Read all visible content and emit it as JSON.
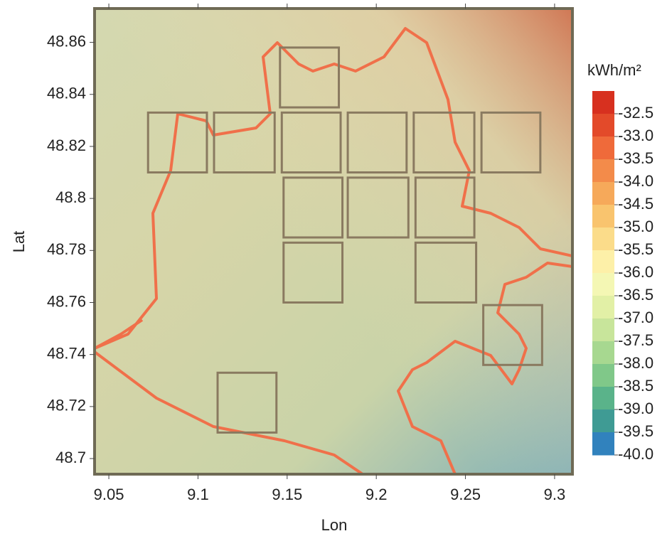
{
  "chart_data": {
    "type": "map",
    "xlabel": "Lon",
    "ylabel": "Lat",
    "xlim": [
      9.042,
      9.31
    ],
    "ylim": [
      48.694,
      48.873
    ],
    "xticks": [
      9.05,
      9.1,
      9.15,
      9.2,
      9.25,
      9.3
    ],
    "yticks": [
      48.7,
      48.72,
      48.74,
      48.76,
      48.78,
      48.8,
      48.82,
      48.84,
      48.86
    ],
    "box_color": "#8a7a60",
    "boundary_color": "#f0704a",
    "boxes": [
      {
        "lon": [
          9.146,
          9.179
        ],
        "lat": [
          48.835,
          48.858
        ]
      },
      {
        "lon": [
          9.072,
          9.105
        ],
        "lat": [
          48.81,
          48.833
        ]
      },
      {
        "lon": [
          9.109,
          9.143
        ],
        "lat": [
          48.81,
          48.833
        ]
      },
      {
        "lon": [
          9.147,
          9.18
        ],
        "lat": [
          48.81,
          48.833
        ]
      },
      {
        "lon": [
          9.184,
          9.217
        ],
        "lat": [
          48.81,
          48.833
        ]
      },
      {
        "lon": [
          9.221,
          9.255
        ],
        "lat": [
          48.81,
          48.833
        ]
      },
      {
        "lon": [
          9.259,
          9.292
        ],
        "lat": [
          48.81,
          48.833
        ]
      },
      {
        "lon": [
          9.148,
          9.181
        ],
        "lat": [
          48.785,
          48.808
        ]
      },
      {
        "lon": [
          9.184,
          9.218
        ],
        "lat": [
          48.785,
          48.808
        ]
      },
      {
        "lon": [
          9.222,
          9.255
        ],
        "lat": [
          48.785,
          48.808
        ]
      },
      {
        "lon": [
          9.148,
          9.181
        ],
        "lat": [
          48.76,
          48.783
        ]
      },
      {
        "lon": [
          9.222,
          9.256
        ],
        "lat": [
          48.76,
          48.783
        ]
      },
      {
        "lon": [
          9.26,
          9.293
        ],
        "lat": [
          48.736,
          48.759
        ]
      },
      {
        "lon": [
          9.111,
          9.144
        ],
        "lat": [
          48.71,
          48.733
        ]
      }
    ],
    "colorbar": {
      "title": "kWh/m²",
      "clim": [
        -40,
        -32
      ],
      "ticks": [
        -32.5,
        {
          "value": -33,
          "label": "-33.0"
        },
        -33.5,
        {
          "value": -34,
          "label": "-34.0"
        },
        -34.5,
        {
          "value": -35,
          "label": "-35.0"
        },
        -35.5,
        {
          "value": -36,
          "label": "-36.0"
        },
        -36.5,
        {
          "value": -37,
          "label": "-37.0"
        },
        -37.5,
        {
          "value": -38,
          "label": "-38.0"
        },
        -38.5,
        {
          "value": -39,
          "label": "-39.0"
        },
        -39.5,
        {
          "value": -40,
          "label": "-40.0"
        }
      ],
      "colors": [
        "#d7301f",
        "#e34a2a",
        "#ef6a3a",
        "#f38b4a",
        "#f6a95a",
        "#f9c46e",
        "#fbdc8a",
        "#fdf0a8",
        "#f4f7b4",
        "#e2f0a6",
        "#c8e59b",
        "#a7d890",
        "#80c889",
        "#5ab38a",
        "#3f9b94",
        "#3182bd"
      ]
    }
  }
}
